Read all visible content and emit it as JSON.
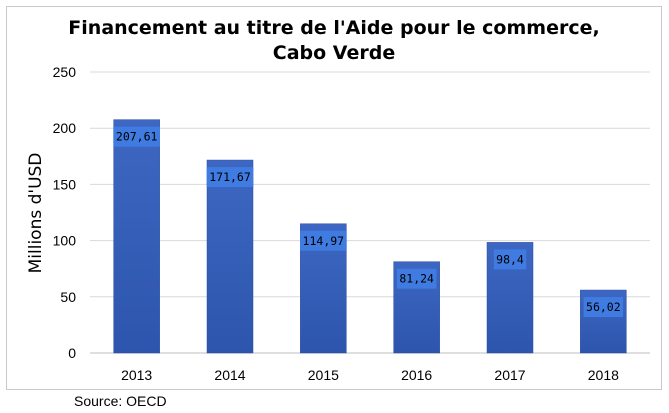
{
  "chart_data": {
    "type": "bar",
    "title_line1": "Financement au titre de l'Aide pour le commerce,",
    "title_line2": "Cabo Verde",
    "ylabel": "Millions d'USD",
    "categories": [
      "2013",
      "2014",
      "2015",
      "2016",
      "2017",
      "2018"
    ],
    "values": [
      207.61,
      171.67,
      114.97,
      81.24,
      98.4,
      56.02
    ],
    "value_labels": [
      "207,61",
      "171,67",
      "114,97",
      "81,24",
      "98,4",
      "56,02"
    ],
    "ylim": [
      0,
      250
    ],
    "yticks": [
      0,
      50,
      100,
      150,
      200,
      250
    ],
    "grid": true,
    "legend": "none",
    "bar_color": "#4472c4",
    "label_box_color": "#3f7be0"
  },
  "source": "Source: OECD"
}
